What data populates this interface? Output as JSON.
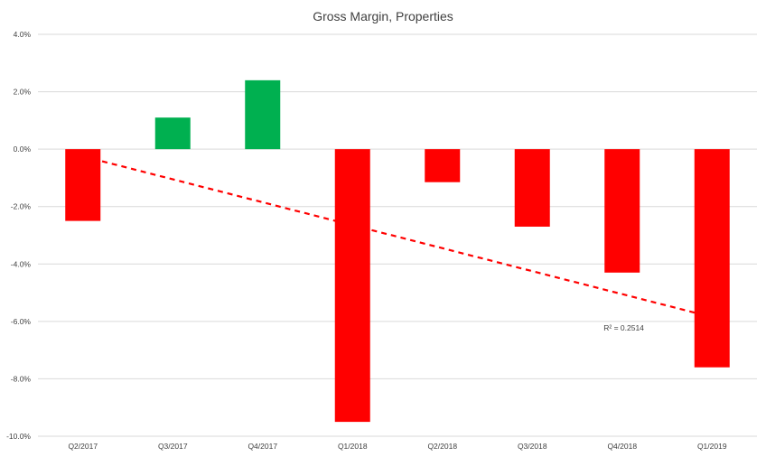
{
  "chart_data": {
    "type": "bar",
    "title": "Gross Margin, Properties",
    "xlabel": "",
    "ylabel": "",
    "categories": [
      "Q2/2017",
      "Q3/2017",
      "Q4/2017",
      "Q1/2018",
      "Q2/2018",
      "Q3/2018",
      "Q4/2018",
      "Q1/2019"
    ],
    "values": [
      -2.5,
      1.1,
      2.4,
      -9.5,
      -1.15,
      -2.7,
      -4.3,
      -7.6
    ],
    "ylim": [
      -10.0,
      4.0
    ],
    "yticks": [
      "4.0%",
      "2.0%",
      "0.0%",
      "-2.0%",
      "-4.0%",
      "-6.0%",
      "-8.0%",
      "-10.0%"
    ],
    "ytick_values": [
      4,
      2,
      0,
      -2,
      -4,
      -6,
      -8,
      -10
    ],
    "grid": true,
    "legend": "none",
    "colors": {
      "positive": "#00b050",
      "negative": "#ff0000",
      "trendline": "#ff0000",
      "grid": "#d9d9d9",
      "text": "#404040"
    },
    "trendline": {
      "type": "linear",
      "r_squared_label": "R² = 0.2514",
      "start_value": -0.25,
      "end_value": -5.85
    }
  }
}
